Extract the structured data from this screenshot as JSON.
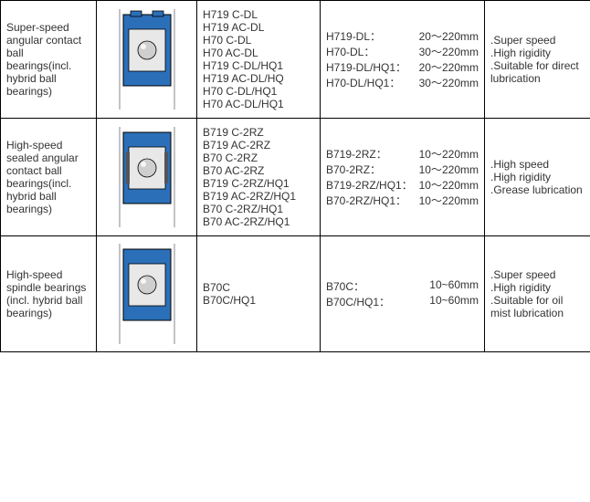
{
  "rows": [
    {
      "desc": "Super-speed angular contact ball bearings(incl. hybrid ball bearings)",
      "codes": [
        "H719 C-DL",
        "H719 AC-DL",
        "H70 C-DL",
        "H70 AC-DL",
        "H719 C-DL/HQ1",
        "H719 AC-DL/HQ",
        "H70 C-DL/HQ1",
        "H70 AC-DL/HQ1"
      ],
      "sizes": [
        {
          "label": "H719-DL：",
          "value": "20～220mm"
        },
        {
          "label": "H70-DL：",
          "value": "30～220mm"
        },
        {
          "label": "H719-DL/HQ1：",
          "value": "20～220mm"
        },
        {
          "label": "H70-DL/HQ1：",
          "value": "30～220mm"
        }
      ],
      "features": [
        ".Super speed",
        ".High rigidity",
        ".Suitable for direct lubrication"
      ],
      "bearing": {
        "style": "dl",
        "outer": "#2b6fb8",
        "inner": "#e8e8e8"
      }
    },
    {
      "desc": "High-speed sealed angular contact ball bearings(incl. hybrid ball bearings)",
      "codes": [
        "B719 C-2RZ",
        "B719 AC-2RZ",
        "B70 C-2RZ",
        "B70 AC-2RZ",
        "B719 C-2RZ/HQ1",
        "B719 AC-2RZ/HQ1",
        "B70 C-2RZ/HQ1",
        "B70 AC-2RZ/HQ1"
      ],
      "sizes": [
        {
          "label": "B719-2RZ：",
          "value": "10～220mm"
        },
        {
          "label": "B70-2RZ：",
          "value": "10～220mm"
        },
        {
          "label": "B719-2RZ/HQ1：",
          "value": "10～220mm"
        },
        {
          "label": "B70-2RZ/HQ1：",
          "value": "10～220mm"
        }
      ],
      "features": [
        ".High speed",
        ".High rigidity",
        ".Grease lubrication"
      ],
      "bearing": {
        "style": "sealed",
        "outer": "#2b6fb8",
        "inner": "#e8e8e8"
      }
    },
    {
      "desc": "High-speed spindle bearings (incl. hybrid ball bearings)",
      "codes": [
        "B70C",
        "B70C/HQ1"
      ],
      "sizes": [
        {
          "label": "B70C：",
          "value": "10~60mm"
        },
        {
          "label": "B70C/HQ1：",
          "value": "10~60mm"
        }
      ],
      "features": [
        ".Super speed",
        ".High rigidity",
        ".Suitable for oil mist lubrication"
      ],
      "bearing": {
        "style": "plain",
        "outer": "#2b6fb8",
        "inner": "#e8e8e8"
      }
    }
  ]
}
